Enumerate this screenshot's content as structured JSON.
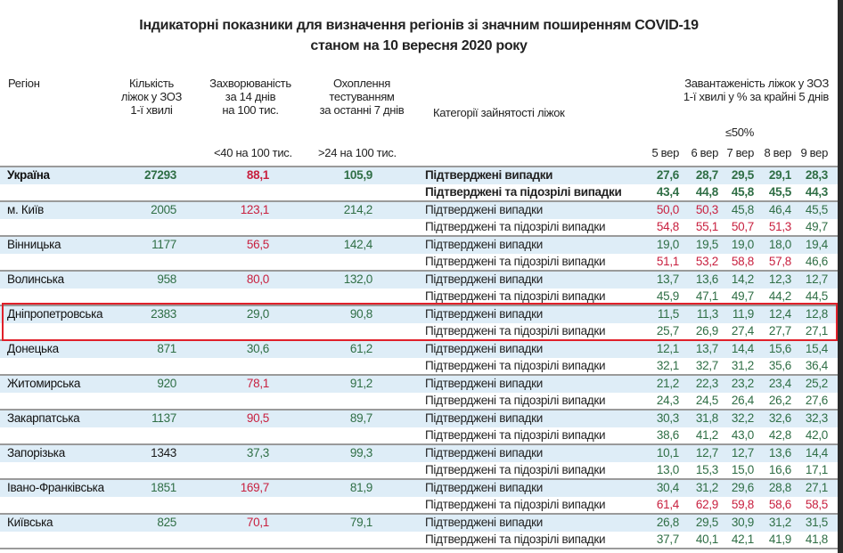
{
  "title_line1": "Індикаторні показники для визначення регіонів зі значним поширенням COVID-19",
  "title_line2": "станом на 10 вересня 2020 року",
  "headers": {
    "region": "Регіон",
    "beds": [
      "Кількість",
      "ліжок у ЗОЗ",
      "1-ї хвилі"
    ],
    "incidence": [
      "Захворюваність",
      "за 14 днів",
      "на 100 тис."
    ],
    "testing": [
      "Охоплення",
      "тестуванням",
      "за останні 7 днів"
    ],
    "category": "Категорії зайнятості ліжок",
    "occupancy": [
      "Завантаженість ліжок у ЗОЗ",
      "1-ї хвилі у % за крайні 5 днів"
    ],
    "incidence_threshold": "<40 на 100 тис.",
    "testing_threshold": ">24 на 100 тис.",
    "occupancy_threshold": "≤50%",
    "days": [
      "5 вер",
      "6 вер",
      "7 вер",
      "8 вер",
      "9 вер"
    ]
  },
  "palette": {
    "g": "#2f6e45",
    "r": "#c8203f",
    "k": "#1a1a1a",
    "highlight": "#e0202a"
  },
  "categories": [
    "Підтверджені випадки",
    "Підтверджені та підозрілі випадки"
  ],
  "highlighted_region": "Дніпропетровська",
  "rows": [
    {
      "name": "Україна",
      "bold": true,
      "beds": [
        "27293",
        "g"
      ],
      "inc": [
        "88,1",
        "r"
      ],
      "test": [
        "105,9",
        "g"
      ],
      "conf": [
        [
          "27,6",
          "g"
        ],
        [
          "28,7",
          "g"
        ],
        [
          "29,5",
          "g"
        ],
        [
          "29,1",
          "g"
        ],
        [
          "28,3",
          "g"
        ]
      ],
      "susp": [
        [
          "43,4",
          "g"
        ],
        [
          "44,8",
          "g"
        ],
        [
          "45,8",
          "g"
        ],
        [
          "45,5",
          "g"
        ],
        [
          "44,3",
          "g"
        ]
      ]
    },
    {
      "name": "м. Київ",
      "beds": [
        "2005",
        "g"
      ],
      "inc": [
        "123,1",
        "r"
      ],
      "test": [
        "214,2",
        "g"
      ],
      "conf": [
        [
          "50,0",
          "r"
        ],
        [
          "50,3",
          "r"
        ],
        [
          "45,8",
          "g"
        ],
        [
          "46,4",
          "g"
        ],
        [
          "45,5",
          "g"
        ]
      ],
      "susp": [
        [
          "54,8",
          "r"
        ],
        [
          "55,1",
          "r"
        ],
        [
          "50,7",
          "r"
        ],
        [
          "51,3",
          "r"
        ],
        [
          "49,7",
          "g"
        ]
      ]
    },
    {
      "name": "Вінницька",
      "beds": [
        "1177",
        "g"
      ],
      "inc": [
        "56,5",
        "r"
      ],
      "test": [
        "142,4",
        "g"
      ],
      "conf": [
        [
          "19,0",
          "g"
        ],
        [
          "19,5",
          "g"
        ],
        [
          "19,0",
          "g"
        ],
        [
          "18,0",
          "g"
        ],
        [
          "19,4",
          "g"
        ]
      ],
      "susp": [
        [
          "51,1",
          "r"
        ],
        [
          "53,2",
          "r"
        ],
        [
          "58,8",
          "r"
        ],
        [
          "57,8",
          "r"
        ],
        [
          "46,6",
          "g"
        ]
      ]
    },
    {
      "name": "Волинська",
      "beds": [
        "958",
        "g"
      ],
      "inc": [
        "80,0",
        "r"
      ],
      "test": [
        "132,0",
        "g"
      ],
      "conf": [
        [
          "13,7",
          "g"
        ],
        [
          "13,6",
          "g"
        ],
        [
          "14,2",
          "g"
        ],
        [
          "12,3",
          "g"
        ],
        [
          "12,7",
          "g"
        ]
      ],
      "susp": [
        [
          "45,9",
          "g"
        ],
        [
          "47,1",
          "g"
        ],
        [
          "49,7",
          "g"
        ],
        [
          "44,2",
          "g"
        ],
        [
          "44,5",
          "g"
        ]
      ]
    },
    {
      "name": "Дніпропетровська",
      "beds": [
        "2383",
        "g"
      ],
      "inc": [
        "29,0",
        "g"
      ],
      "test": [
        "90,8",
        "g"
      ],
      "conf": [
        [
          "11,5",
          "g"
        ],
        [
          "11,3",
          "g"
        ],
        [
          "11,9",
          "g"
        ],
        [
          "12,4",
          "g"
        ],
        [
          "12,8",
          "g"
        ]
      ],
      "susp": [
        [
          "25,7",
          "g"
        ],
        [
          "26,9",
          "g"
        ],
        [
          "27,4",
          "g"
        ],
        [
          "27,7",
          "g"
        ],
        [
          "27,1",
          "g"
        ]
      ]
    },
    {
      "name": "Донецька",
      "beds": [
        "871",
        "g"
      ],
      "inc": [
        "30,6",
        "g"
      ],
      "test": [
        "61,2",
        "g"
      ],
      "conf": [
        [
          "12,1",
          "g"
        ],
        [
          "13,7",
          "g"
        ],
        [
          "14,4",
          "g"
        ],
        [
          "15,6",
          "g"
        ],
        [
          "15,4",
          "g"
        ]
      ],
      "susp": [
        [
          "32,1",
          "g"
        ],
        [
          "32,7",
          "g"
        ],
        [
          "31,2",
          "g"
        ],
        [
          "35,6",
          "g"
        ],
        [
          "36,4",
          "g"
        ]
      ]
    },
    {
      "name": "Житомирська",
      "beds": [
        "920",
        "g"
      ],
      "inc": [
        "78,1",
        "r"
      ],
      "test": [
        "91,2",
        "g"
      ],
      "conf": [
        [
          "21,2",
          "g"
        ],
        [
          "22,3",
          "g"
        ],
        [
          "23,2",
          "g"
        ],
        [
          "23,4",
          "g"
        ],
        [
          "25,2",
          "g"
        ]
      ],
      "susp": [
        [
          "24,3",
          "g"
        ],
        [
          "24,5",
          "g"
        ],
        [
          "26,4",
          "g"
        ],
        [
          "26,2",
          "g"
        ],
        [
          "27,6",
          "g"
        ]
      ]
    },
    {
      "name": "Закарпатська",
      "beds": [
        "1137",
        "g"
      ],
      "inc": [
        "90,5",
        "r"
      ],
      "test": [
        "89,7",
        "g"
      ],
      "conf": [
        [
          "30,3",
          "g"
        ],
        [
          "31,8",
          "g"
        ],
        [
          "32,2",
          "g"
        ],
        [
          "32,6",
          "g"
        ],
        [
          "32,3",
          "g"
        ]
      ],
      "susp": [
        [
          "38,6",
          "g"
        ],
        [
          "41,2",
          "g"
        ],
        [
          "43,0",
          "g"
        ],
        [
          "42,8",
          "g"
        ],
        [
          "42,0",
          "g"
        ]
      ]
    },
    {
      "name": "Запорізька",
      "beds": [
        "1343",
        "k"
      ],
      "inc": [
        "37,3",
        "g"
      ],
      "test": [
        "99,3",
        "g"
      ],
      "conf": [
        [
          "10,1",
          "g"
        ],
        [
          "12,7",
          "g"
        ],
        [
          "12,7",
          "g"
        ],
        [
          "13,6",
          "g"
        ],
        [
          "14,4",
          "g"
        ]
      ],
      "susp": [
        [
          "13,0",
          "g"
        ],
        [
          "15,3",
          "g"
        ],
        [
          "15,0",
          "g"
        ],
        [
          "16,6",
          "g"
        ],
        [
          "17,1",
          "g"
        ]
      ]
    },
    {
      "name": "Івано-Франківська",
      "beds": [
        "1851",
        "g"
      ],
      "inc": [
        "169,7",
        "r"
      ],
      "test": [
        "81,9",
        "g"
      ],
      "conf": [
        [
          "30,4",
          "g"
        ],
        [
          "31,2",
          "g"
        ],
        [
          "29,6",
          "g"
        ],
        [
          "28,8",
          "g"
        ],
        [
          "27,1",
          "g"
        ]
      ],
      "susp": [
        [
          "61,4",
          "r"
        ],
        [
          "62,9",
          "r"
        ],
        [
          "59,8",
          "r"
        ],
        [
          "58,6",
          "r"
        ],
        [
          "58,5",
          "r"
        ]
      ]
    },
    {
      "name": "Київська",
      "beds": [
        "825",
        "g"
      ],
      "inc": [
        "70,1",
        "r"
      ],
      "test": [
        "79,1",
        "g"
      ],
      "conf": [
        [
          "26,8",
          "g"
        ],
        [
          "29,5",
          "g"
        ],
        [
          "30,9",
          "g"
        ],
        [
          "31,2",
          "g"
        ],
        [
          "31,5",
          "g"
        ]
      ],
      "susp": [
        [
          "37,7",
          "g"
        ],
        [
          "40,1",
          "g"
        ],
        [
          "42,1",
          "g"
        ],
        [
          "41,9",
          "g"
        ],
        [
          "41,8",
          "g"
        ]
      ]
    }
  ]
}
